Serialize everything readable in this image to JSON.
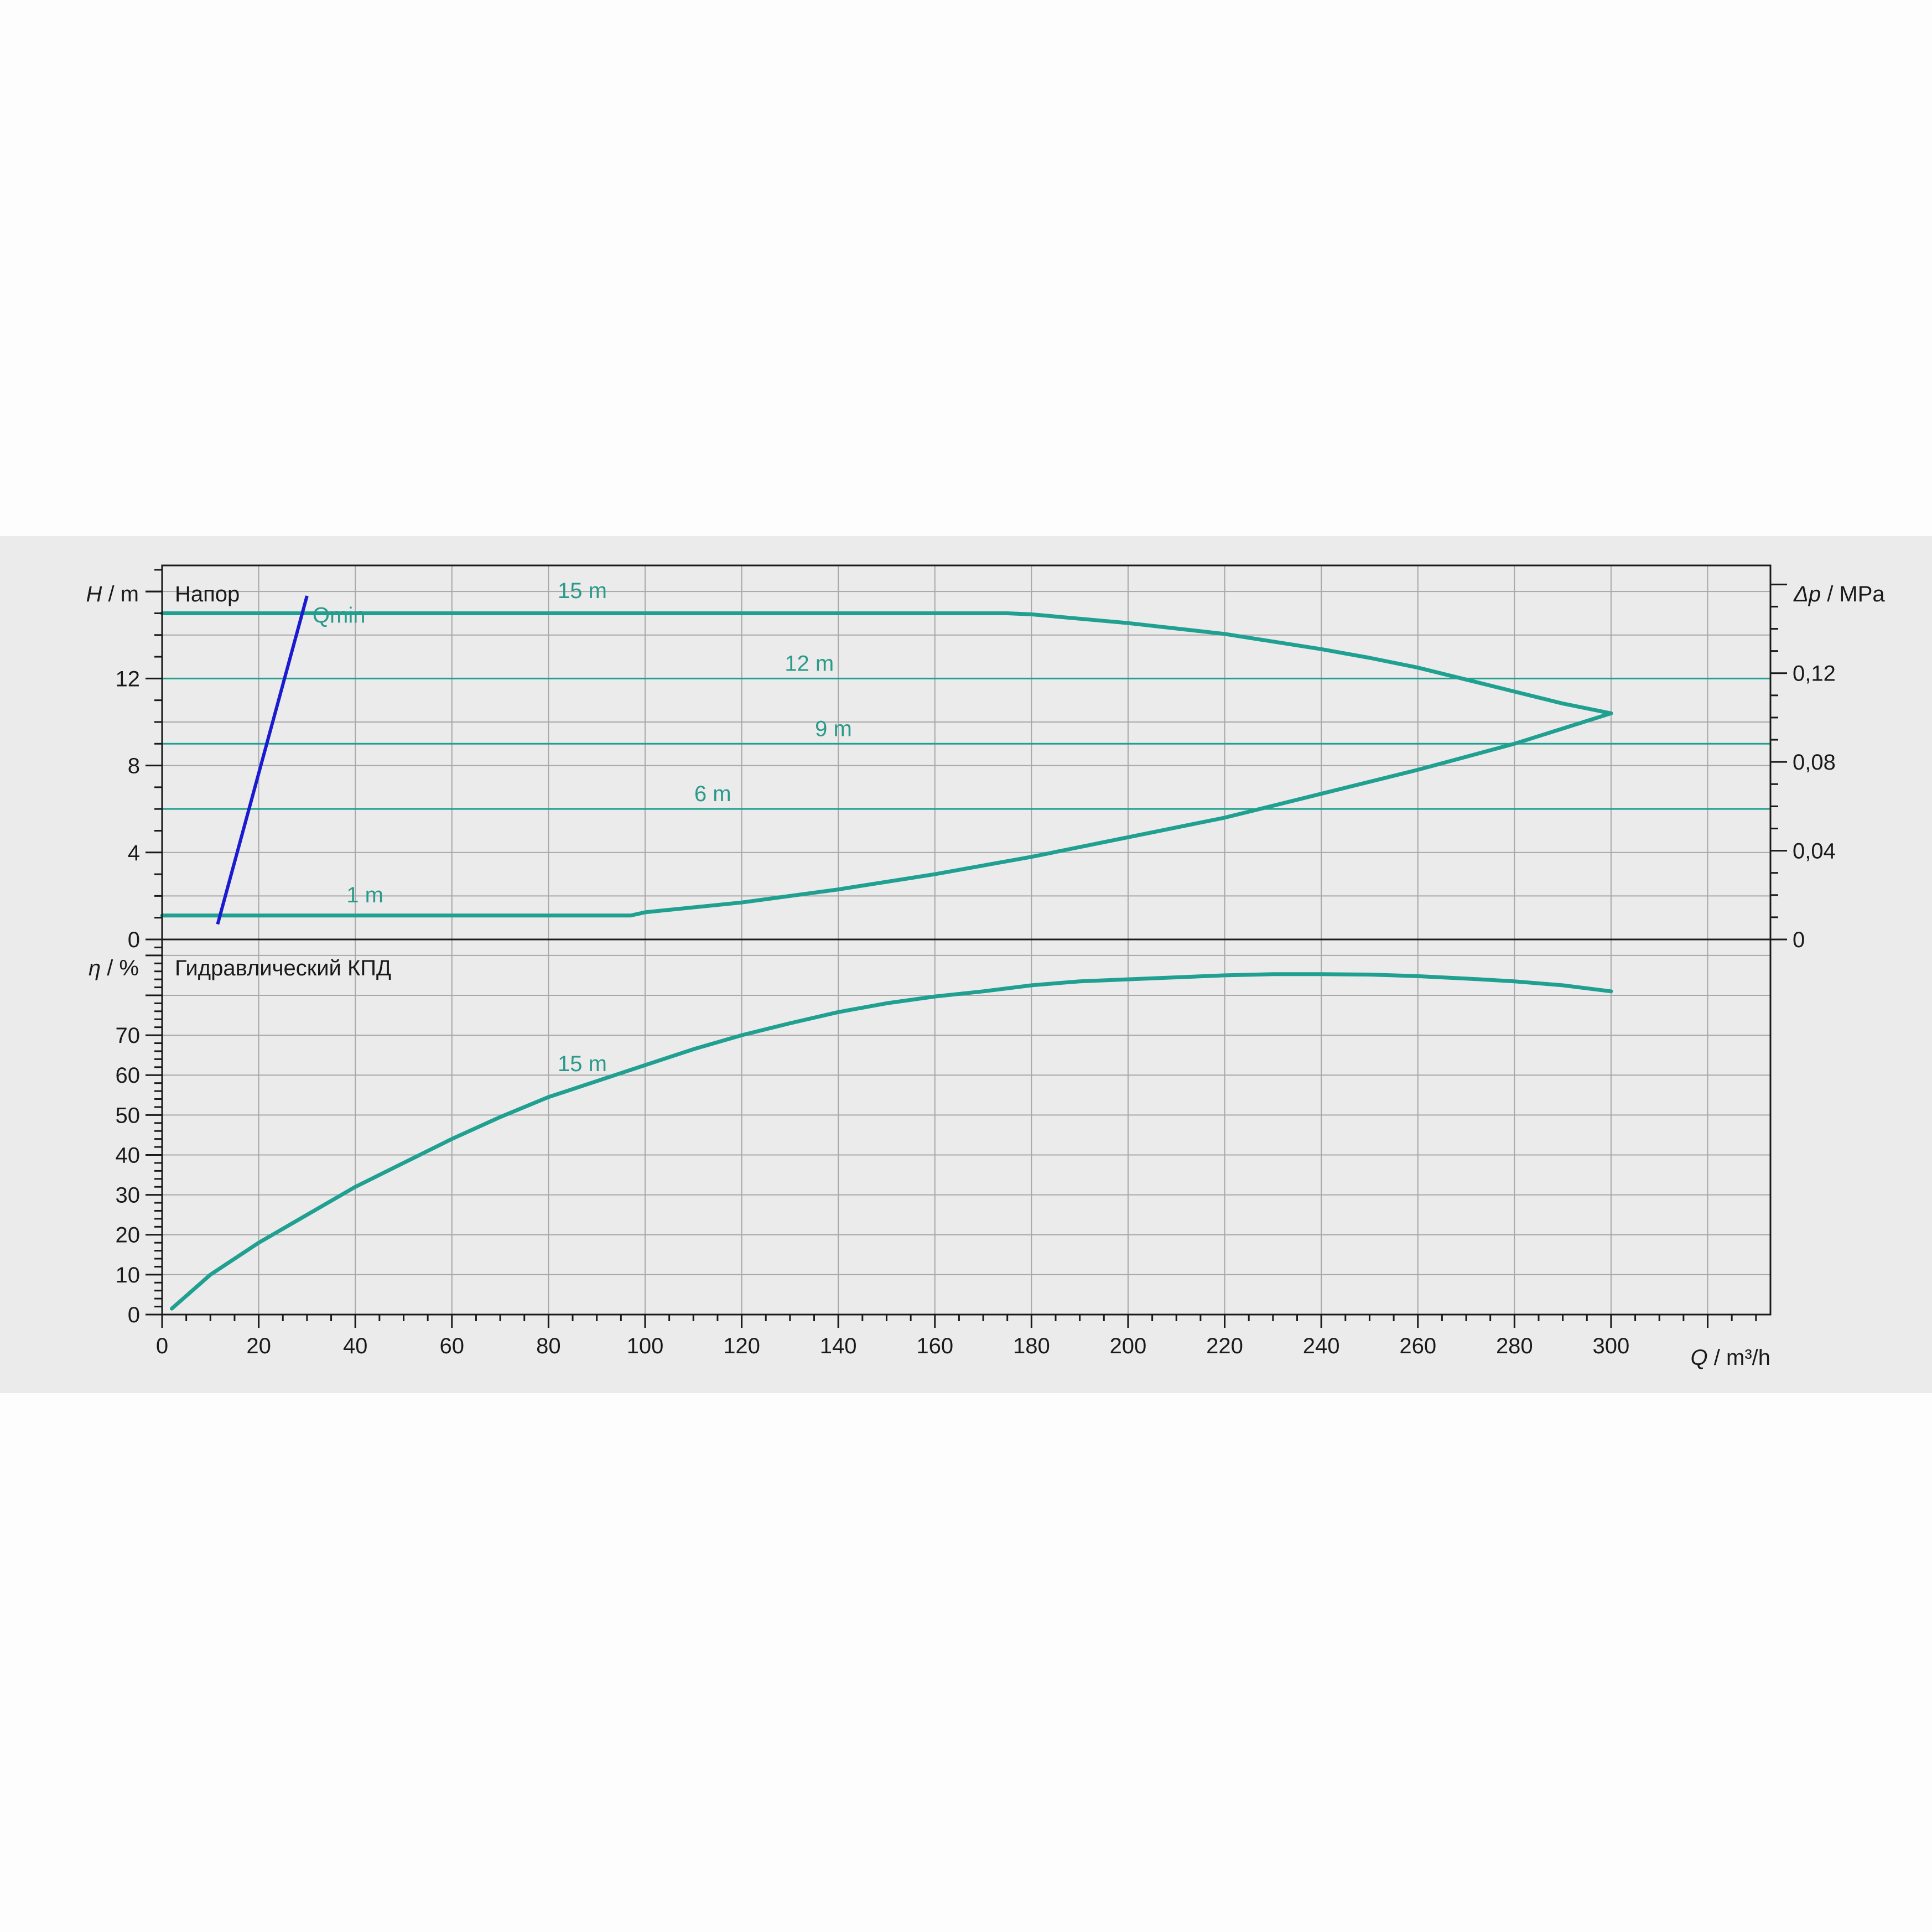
{
  "colors": {
    "curve": "#20a090",
    "qmin_line": "#1a1ad0",
    "grid": "#a8a8a8",
    "frame": "#1a1a1a",
    "panel_bg": "#ebebeb",
    "page_bg": "#fdfdfd"
  },
  "chart_data": {
    "type": "line",
    "x_axis": {
      "label_symbol": "Q",
      "label_unit": " / m³/h",
      "range": [
        0,
        333
      ],
      "ticks": [
        0,
        20,
        40,
        60,
        80,
        100,
        120,
        140,
        160,
        180,
        200,
        220,
        240,
        260,
        280,
        300
      ],
      "tick_labels": [
        "0",
        "20",
        "40",
        "60",
        "80",
        "100",
        "120",
        "140",
        "160",
        "180",
        "200",
        "220",
        "240",
        "260",
        "280",
        "300"
      ],
      "grid": true
    },
    "head_panel": {
      "title": "Напор",
      "y_label_symbol": "H",
      "y_label_unit": " / m",
      "y_range": [
        0,
        17.2
      ],
      "y_ticks": [
        0,
        4,
        8,
        12
      ],
      "y_tick_labels": [
        "0",
        "4",
        "8",
        "12"
      ],
      "right_axis": {
        "label_symbol": "Δp",
        "label_unit": " / MPa",
        "ticks": [
          0,
          0.04,
          0.08,
          0.12
        ],
        "tick_labels": [
          "0",
          "0,04",
          "0,08",
          "0,12"
        ]
      },
      "setpoint_lines": [
        {
          "name": "12 m",
          "y": 12,
          "label_x": 134
        },
        {
          "name": "9 m",
          "y": 9,
          "label_x": 139
        },
        {
          "name": "6 m",
          "y": 6,
          "label_x": 114
        }
      ],
      "series": [
        {
          "name": "15 m",
          "label_x": 87,
          "label_y": 15.7,
          "x": [
            0,
            175,
            180,
            190,
            200,
            210,
            220,
            230,
            240,
            250,
            260,
            270,
            280,
            290,
            300
          ],
          "y": [
            15,
            15,
            14.95,
            14.75,
            14.55,
            14.3,
            14.05,
            13.7,
            13.35,
            12.95,
            12.5,
            11.95,
            11.4,
            10.85,
            10.4
          ]
        },
        {
          "name": "1 m",
          "label_x": 42,
          "label_y": 1.7,
          "x": [
            0,
            97,
            100,
            120,
            140,
            160,
            180,
            200,
            220,
            240,
            260,
            280,
            300
          ],
          "y": [
            1.1,
            1.1,
            1.25,
            1.7,
            2.3,
            3.0,
            3.8,
            4.7,
            5.6,
            6.7,
            7.8,
            9.0,
            10.4
          ]
        }
      ],
      "qmin": {
        "label": "Qmin",
        "x": [
          11.5,
          30
        ],
        "y": [
          0.7,
          15.8
        ]
      }
    },
    "efficiency_panel": {
      "title": "Гидравлический КПД",
      "y_label_symbol": "η",
      "y_label_unit": " / %",
      "y_range": [
        0,
        94
      ],
      "y_ticks": [
        0,
        10,
        20,
        30,
        40,
        50,
        60,
        70
      ],
      "y_tick_labels": [
        "0",
        "10",
        "20",
        "30",
        "40",
        "50",
        "60",
        "70"
      ],
      "series": [
        {
          "name": "15 m",
          "label_x": 87,
          "label_y": 61,
          "x": [
            2,
            10,
            20,
            30,
            40,
            50,
            60,
            70,
            80,
            90,
            100,
            110,
            120,
            130,
            140,
            150,
            160,
            170,
            180,
            190,
            200,
            210,
            220,
            230,
            240,
            250,
            260,
            270,
            280,
            290,
            300
          ],
          "y": [
            1.5,
            10,
            18,
            25,
            32,
            38,
            44,
            49.5,
            54.5,
            58.5,
            62.5,
            66.5,
            70,
            73,
            75.8,
            78,
            79.7,
            81,
            82.5,
            83.5,
            84,
            84.5,
            85,
            85.3,
            85.3,
            85.2,
            84.8,
            84.2,
            83.5,
            82.5,
            81
          ]
        }
      ]
    }
  }
}
